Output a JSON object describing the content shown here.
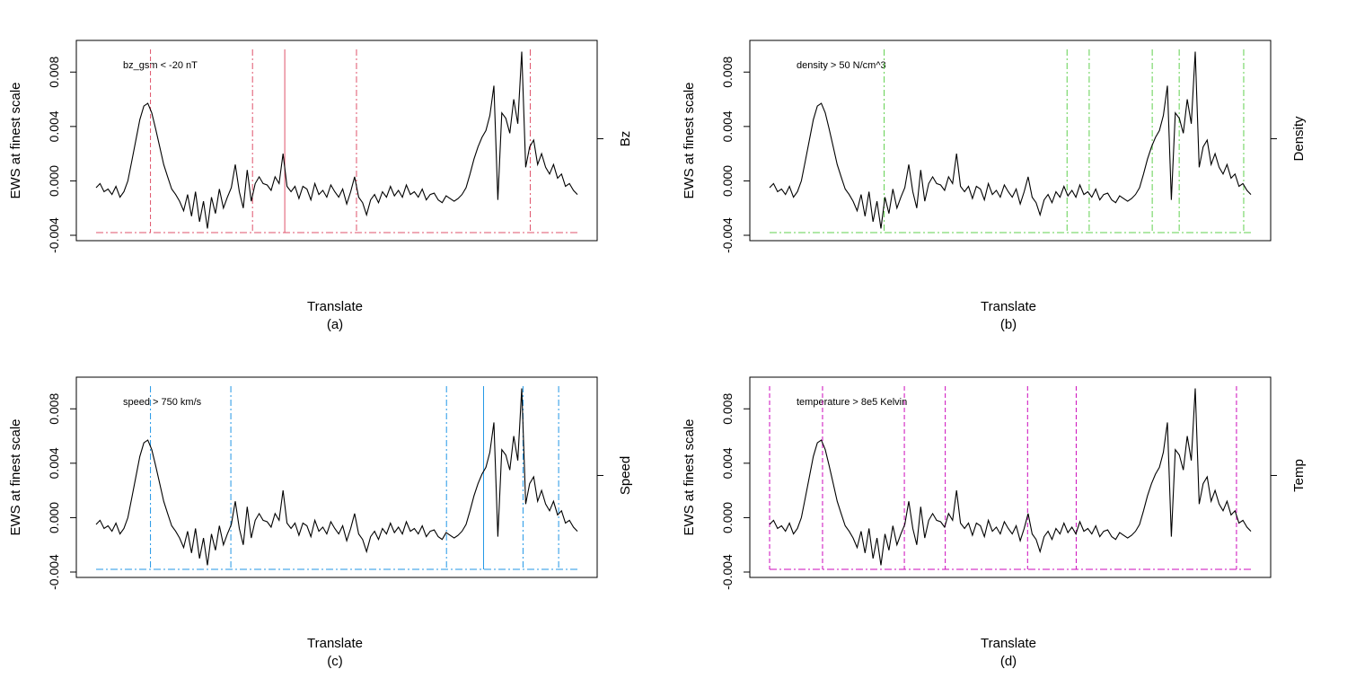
{
  "chart_data": [
    {
      "type": "line",
      "panel_label": "(a)",
      "xlabel": "Translate",
      "ylabel": "EWS at finest scale",
      "right_axis_label": "Bz",
      "annotation": "bz_gsm < -20 nT",
      "ylim": [
        -0.004,
        0.01
      ],
      "y_ticks": [
        -0.004,
        0.0,
        0.004,
        0.008
      ],
      "y_tick_labels": [
        "-0.004",
        "0.000",
        "0.004",
        "0.008"
      ],
      "indicator_color": "#DF536B",
      "indicator_positions": [
        0.113,
        0.325,
        0.392,
        0.541,
        0.902
      ],
      "indicator_styles": [
        "dash",
        "dashdot",
        "solid",
        "dashdot",
        "dashdot"
      ],
      "series": [
        {
          "name": "EWS",
          "values": [
            -0.0005,
            -0.0002,
            -0.0008,
            -0.0006,
            -0.001,
            -0.0004,
            -0.0012,
            -0.0008,
            0.0,
            0.0015,
            0.003,
            0.0045,
            0.0055,
            0.0057,
            0.005,
            0.0038,
            0.0025,
            0.0012,
            0.0003,
            -0.0006,
            -0.001,
            -0.0015,
            -0.0022,
            -0.001,
            -0.0026,
            -0.0008,
            -0.003,
            -0.0015,
            -0.0035,
            -0.0012,
            -0.0024,
            -0.0006,
            -0.002,
            -0.0012,
            -0.0005,
            0.0012,
            -0.0008,
            -0.002,
            0.0008,
            -0.0015,
            -0.0002,
            0.0003,
            -0.0002,
            -0.0003,
            -0.0007,
            0.0003,
            -0.0002,
            0.002,
            -0.0004,
            -0.0008,
            -0.0004,
            -0.0013,
            -0.0004,
            -0.0006,
            -0.0014,
            -0.0002,
            -0.001,
            -0.0007,
            -0.0012,
            -0.0003,
            -0.0008,
            -0.0012,
            -0.0006,
            -0.0017,
            -0.0008,
            0.0003,
            -0.0012,
            -0.0016,
            -0.0025,
            -0.0014,
            -0.001,
            -0.0016,
            -0.0008,
            -0.0012,
            -0.0004,
            -0.0011,
            -0.0007,
            -0.0012,
            -0.0003,
            -0.001,
            -0.0008,
            -0.0012,
            -0.0006,
            -0.0014,
            -0.001,
            -0.0009,
            -0.0014,
            -0.0016,
            -0.0011,
            -0.0013,
            -0.0015,
            -0.0013,
            -0.001,
            -0.0005,
            0.0005,
            0.0016,
            0.0025,
            0.0032,
            0.0037,
            0.0048,
            0.007,
            -0.0014,
            0.005,
            0.0046,
            0.0035,
            0.006,
            0.0042,
            0.0095,
            0.001,
            0.0025,
            0.003,
            0.0012,
            0.002,
            0.001,
            0.0005,
            0.0012,
            0.0002,
            0.0005,
            -0.0004,
            -0.0002,
            -0.0007,
            -0.001
          ]
        }
      ]
    },
    {
      "type": "line",
      "panel_label": "(b)",
      "xlabel": "Translate",
      "ylabel": "EWS at finest scale",
      "right_axis_label": "Density",
      "annotation": "density > 50 N/cm^3",
      "ylim": [
        -0.004,
        0.01
      ],
      "y_ticks": [
        -0.004,
        0.0,
        0.004,
        0.008
      ],
      "y_tick_labels": [
        "-0.004",
        "0.000",
        "0.004",
        "0.008"
      ],
      "indicator_color": "#61D04F",
      "indicator_positions": [
        0.238,
        0.618,
        0.664,
        0.795,
        0.851,
        0.985
      ],
      "indicator_styles": [
        "dashdot",
        "dashdot",
        "dashdot",
        "dashdot",
        "dashdot",
        "dashdot"
      ],
      "series": [
        {
          "name": "EWS",
          "values": [
            -0.0005,
            -0.0002,
            -0.0008,
            -0.0006,
            -0.001,
            -0.0004,
            -0.0012,
            -0.0008,
            0.0,
            0.0015,
            0.003,
            0.0045,
            0.0055,
            0.0057,
            0.005,
            0.0038,
            0.0025,
            0.0012,
            0.0003,
            -0.0006,
            -0.001,
            -0.0015,
            -0.0022,
            -0.001,
            -0.0026,
            -0.0008,
            -0.003,
            -0.0015,
            -0.0035,
            -0.0012,
            -0.0024,
            -0.0006,
            -0.002,
            -0.0012,
            -0.0005,
            0.0012,
            -0.0008,
            -0.002,
            0.0008,
            -0.0015,
            -0.0002,
            0.0003,
            -0.0002,
            -0.0003,
            -0.0007,
            0.0003,
            -0.0002,
            0.002,
            -0.0004,
            -0.0008,
            -0.0004,
            -0.0013,
            -0.0004,
            -0.0006,
            -0.0014,
            -0.0002,
            -0.001,
            -0.0007,
            -0.0012,
            -0.0003,
            -0.0008,
            -0.0012,
            -0.0006,
            -0.0017,
            -0.0008,
            0.0003,
            -0.0012,
            -0.0016,
            -0.0025,
            -0.0014,
            -0.001,
            -0.0016,
            -0.0008,
            -0.0012,
            -0.0004,
            -0.0011,
            -0.0007,
            -0.0012,
            -0.0003,
            -0.001,
            -0.0008,
            -0.0012,
            -0.0006,
            -0.0014,
            -0.001,
            -0.0009,
            -0.0014,
            -0.0016,
            -0.0011,
            -0.0013,
            -0.0015,
            -0.0013,
            -0.001,
            -0.0005,
            0.0005,
            0.0016,
            0.0025,
            0.0032,
            0.0037,
            0.0048,
            0.007,
            -0.0014,
            0.005,
            0.0046,
            0.0035,
            0.006,
            0.0042,
            0.0095,
            0.001,
            0.0025,
            0.003,
            0.0012,
            0.002,
            0.001,
            0.0005,
            0.0012,
            0.0002,
            0.0005,
            -0.0004,
            -0.0002,
            -0.0007,
            -0.001
          ]
        }
      ]
    },
    {
      "type": "line",
      "panel_label": "(c)",
      "xlabel": "Translate",
      "ylabel": "EWS at finest scale",
      "right_axis_label": "Speed",
      "annotation": "speed > 750 km/s",
      "ylim": [
        -0.004,
        0.01
      ],
      "y_ticks": [
        -0.004,
        0.0,
        0.004,
        0.008
      ],
      "y_tick_labels": [
        "-0.004",
        "0.000",
        "0.004",
        "0.008"
      ],
      "indicator_color": "#2297E6",
      "indicator_positions": [
        0.113,
        0.28,
        0.728,
        0.805,
        0.887,
        0.961
      ],
      "indicator_styles": [
        "dashdot",
        "dashdot",
        "dashdot",
        "solid",
        "dashdot",
        "dashdot"
      ],
      "series": [
        {
          "name": "EWS",
          "values": [
            -0.0005,
            -0.0002,
            -0.0008,
            -0.0006,
            -0.001,
            -0.0004,
            -0.0012,
            -0.0008,
            0.0,
            0.0015,
            0.003,
            0.0045,
            0.0055,
            0.0057,
            0.005,
            0.0038,
            0.0025,
            0.0012,
            0.0003,
            -0.0006,
            -0.001,
            -0.0015,
            -0.0022,
            -0.001,
            -0.0026,
            -0.0008,
            -0.003,
            -0.0015,
            -0.0035,
            -0.0012,
            -0.0024,
            -0.0006,
            -0.002,
            -0.0012,
            -0.0005,
            0.0012,
            -0.0008,
            -0.002,
            0.0008,
            -0.0015,
            -0.0002,
            0.0003,
            -0.0002,
            -0.0003,
            -0.0007,
            0.0003,
            -0.0002,
            0.002,
            -0.0004,
            -0.0008,
            -0.0004,
            -0.0013,
            -0.0004,
            -0.0006,
            -0.0014,
            -0.0002,
            -0.001,
            -0.0007,
            -0.0012,
            -0.0003,
            -0.0008,
            -0.0012,
            -0.0006,
            -0.0017,
            -0.0008,
            0.0003,
            -0.0012,
            -0.0016,
            -0.0025,
            -0.0014,
            -0.001,
            -0.0016,
            -0.0008,
            -0.0012,
            -0.0004,
            -0.0011,
            -0.0007,
            -0.0012,
            -0.0003,
            -0.001,
            -0.0008,
            -0.0012,
            -0.0006,
            -0.0014,
            -0.001,
            -0.0009,
            -0.0014,
            -0.0016,
            -0.0011,
            -0.0013,
            -0.0015,
            -0.0013,
            -0.001,
            -0.0005,
            0.0005,
            0.0016,
            0.0025,
            0.0032,
            0.0037,
            0.0048,
            0.007,
            -0.0014,
            0.005,
            0.0046,
            0.0035,
            0.006,
            0.0042,
            0.0095,
            0.001,
            0.0025,
            0.003,
            0.0012,
            0.002,
            0.001,
            0.0005,
            0.0012,
            0.0002,
            0.0005,
            -0.0004,
            -0.0002,
            -0.0007,
            -0.001
          ]
        }
      ]
    },
    {
      "type": "line",
      "panel_label": "(d)",
      "xlabel": "Translate",
      "ylabel": "EWS at finest scale",
      "right_axis_label": "Temp",
      "annotation": "temperature > 8e5 Kelvin",
      "ylim": [
        -0.004,
        0.01
      ],
      "y_ticks": [
        -0.004,
        0.0,
        0.004,
        0.008
      ],
      "y_tick_labels": [
        "-0.004",
        "0.000",
        "0.004",
        "0.008"
      ],
      "indicator_color": "#CD0BBC",
      "indicator_positions": [
        0.0,
        0.11,
        0.28,
        0.365,
        0.536,
        0.637,
        0.97
      ],
      "indicator_styles": [
        "dash",
        "dash",
        "dash",
        "dash",
        "dash",
        "dash",
        "dash"
      ],
      "series": [
        {
          "name": "EWS",
          "values": [
            -0.0005,
            -0.0002,
            -0.0008,
            -0.0006,
            -0.001,
            -0.0004,
            -0.0012,
            -0.0008,
            0.0,
            0.0015,
            0.003,
            0.0045,
            0.0055,
            0.0057,
            0.005,
            0.0038,
            0.0025,
            0.0012,
            0.0003,
            -0.0006,
            -0.001,
            -0.0015,
            -0.0022,
            -0.001,
            -0.0026,
            -0.0008,
            -0.003,
            -0.0015,
            -0.0035,
            -0.0012,
            -0.0024,
            -0.0006,
            -0.002,
            -0.0012,
            -0.0005,
            0.0012,
            -0.0008,
            -0.002,
            0.0008,
            -0.0015,
            -0.0002,
            0.0003,
            -0.0002,
            -0.0003,
            -0.0007,
            0.0003,
            -0.0002,
            0.002,
            -0.0004,
            -0.0008,
            -0.0004,
            -0.0013,
            -0.0004,
            -0.0006,
            -0.0014,
            -0.0002,
            -0.001,
            -0.0007,
            -0.0012,
            -0.0003,
            -0.0008,
            -0.0012,
            -0.0006,
            -0.0017,
            -0.0008,
            0.0003,
            -0.0012,
            -0.0016,
            -0.0025,
            -0.0014,
            -0.001,
            -0.0016,
            -0.0008,
            -0.0012,
            -0.0004,
            -0.0011,
            -0.0007,
            -0.0012,
            -0.0003,
            -0.001,
            -0.0008,
            -0.0012,
            -0.0006,
            -0.0014,
            -0.001,
            -0.0009,
            -0.0014,
            -0.0016,
            -0.0011,
            -0.0013,
            -0.0015,
            -0.0013,
            -0.001,
            -0.0005,
            0.0005,
            0.0016,
            0.0025,
            0.0032,
            0.0037,
            0.0048,
            0.007,
            -0.0014,
            0.005,
            0.0046,
            0.0035,
            0.006,
            0.0042,
            0.0095,
            0.001,
            0.0025,
            0.003,
            0.0012,
            0.002,
            0.001,
            0.0005,
            0.0012,
            0.0002,
            0.0005,
            -0.0004,
            -0.0002,
            -0.0007,
            -0.001
          ]
        }
      ]
    }
  ]
}
